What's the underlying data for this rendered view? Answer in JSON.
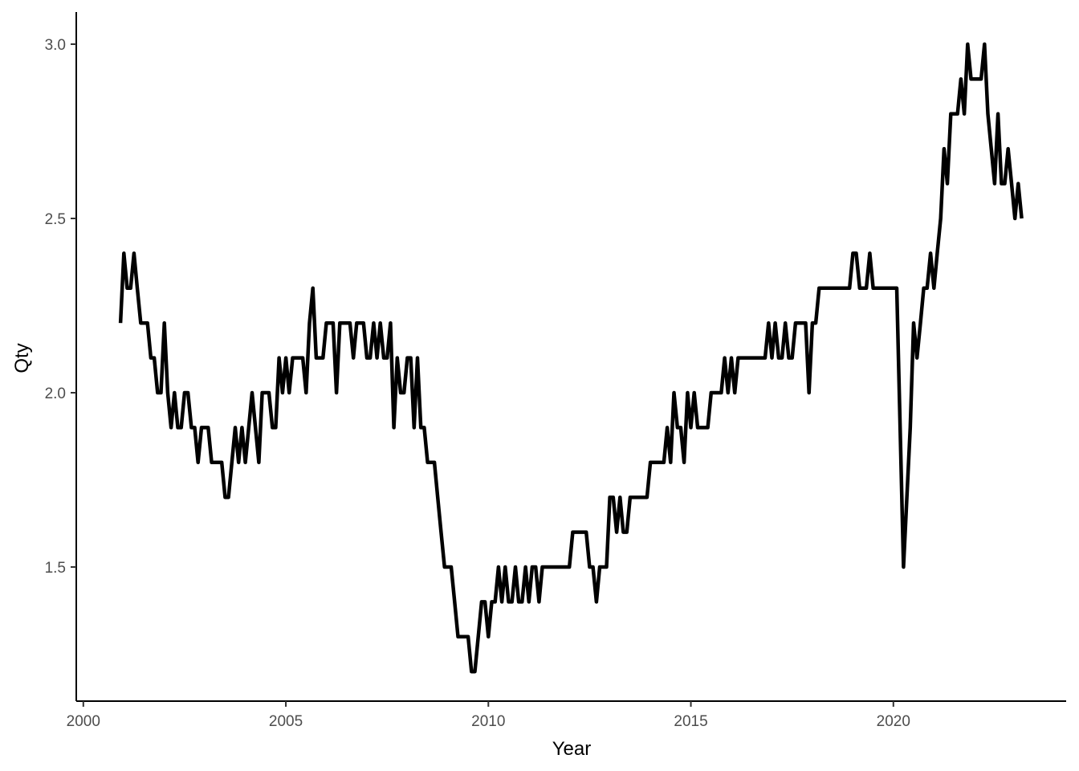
{
  "chart_data": {
    "type": "line",
    "title": "",
    "xlabel": "Year",
    "ylabel": "Qty",
    "xlim": [
      2000,
      2024
    ],
    "ylim": [
      1.17,
      3.08
    ],
    "x_ticks": [
      2000,
      2005,
      2010,
      2015,
      2020
    ],
    "y_ticks": [
      1.5,
      2.0,
      2.5,
      3.0
    ],
    "x_tick_labels": [
      "2000",
      "2005",
      "2010",
      "2015",
      "2020"
    ],
    "y_tick_labels": [
      "1.5",
      "2.0",
      "2.5",
      "3.0"
    ],
    "grid": false,
    "legend": "none",
    "series": [
      {
        "color": "#000000",
        "x": [
          2000.917,
          2001.0,
          2001.083,
          2001.167,
          2001.25,
          2001.333,
          2001.417,
          2001.5,
          2001.583,
          2001.667,
          2001.75,
          2001.833,
          2001.917,
          2002.0,
          2002.083,
          2002.167,
          2002.25,
          2002.333,
          2002.417,
          2002.5,
          2002.583,
          2002.667,
          2002.75,
          2002.833,
          2002.917,
          2003.0,
          2003.083,
          2003.167,
          2003.25,
          2003.333,
          2003.417,
          2003.5,
          2003.583,
          2003.667,
          2003.75,
          2003.833,
          2003.917,
          2004.0,
          2004.083,
          2004.167,
          2004.25,
          2004.333,
          2004.417,
          2004.5,
          2004.583,
          2004.667,
          2004.75,
          2004.833,
          2004.917,
          2005.0,
          2005.083,
          2005.167,
          2005.25,
          2005.333,
          2005.417,
          2005.5,
          2005.583,
          2005.667,
          2005.75,
          2005.833,
          2005.917,
          2006.0,
          2006.083,
          2006.167,
          2006.25,
          2006.333,
          2006.417,
          2006.5,
          2006.583,
          2006.667,
          2006.75,
          2006.833,
          2006.917,
          2007.0,
          2007.083,
          2007.167,
          2007.25,
          2007.333,
          2007.417,
          2007.5,
          2007.583,
          2007.667,
          2007.75,
          2007.833,
          2007.917,
          2008.0,
          2008.083,
          2008.167,
          2008.25,
          2008.333,
          2008.417,
          2008.5,
          2008.583,
          2008.667,
          2008.75,
          2008.833,
          2008.917,
          2009.0,
          2009.083,
          2009.167,
          2009.25,
          2009.333,
          2009.417,
          2009.5,
          2009.583,
          2009.667,
          2009.75,
          2009.833,
          2009.917,
          2010.0,
          2010.083,
          2010.167,
          2010.25,
          2010.333,
          2010.417,
          2010.5,
          2010.583,
          2010.667,
          2010.75,
          2010.833,
          2010.917,
          2011.0,
          2011.083,
          2011.167,
          2011.25,
          2011.333,
          2011.417,
          2011.5,
          2011.583,
          2011.667,
          2011.75,
          2011.833,
          2011.917,
          2012.0,
          2012.083,
          2012.167,
          2012.25,
          2012.333,
          2012.417,
          2012.5,
          2012.583,
          2012.667,
          2012.75,
          2012.833,
          2012.917,
          2013.0,
          2013.083,
          2013.167,
          2013.25,
          2013.333,
          2013.417,
          2013.5,
          2013.583,
          2013.667,
          2013.75,
          2013.833,
          2013.917,
          2014.0,
          2014.083,
          2014.167,
          2014.25,
          2014.333,
          2014.417,
          2014.5,
          2014.583,
          2014.667,
          2014.75,
          2014.833,
          2014.917,
          2015.0,
          2015.083,
          2015.167,
          2015.25,
          2015.333,
          2015.417,
          2015.5,
          2015.583,
          2015.667,
          2015.75,
          2015.833,
          2015.917,
          2016.0,
          2016.083,
          2016.167,
          2016.25,
          2016.333,
          2016.417,
          2016.5,
          2016.583,
          2016.667,
          2016.75,
          2016.833,
          2016.917,
          2017.0,
          2017.083,
          2017.167,
          2017.25,
          2017.333,
          2017.417,
          2017.5,
          2017.583,
          2017.667,
          2017.75,
          2017.833,
          2017.917,
          2018.0,
          2018.083,
          2018.167,
          2018.25,
          2018.333,
          2018.417,
          2018.5,
          2018.583,
          2018.667,
          2018.75,
          2018.833,
          2018.917,
          2019.0,
          2019.083,
          2019.167,
          2019.25,
          2019.333,
          2019.417,
          2019.5,
          2019.583,
          2019.667,
          2019.75,
          2019.833,
          2019.917,
          2020.0,
          2020.083,
          2020.167,
          2020.25,
          2020.333,
          2020.417,
          2020.5,
          2020.583,
          2020.667,
          2020.75,
          2020.833,
          2020.917,
          2021.0,
          2021.083,
          2021.167,
          2021.25,
          2021.333,
          2021.417,
          2021.5,
          2021.583,
          2021.667,
          2021.75,
          2021.833,
          2021.917,
          2022.0,
          2022.083,
          2022.167,
          2022.25,
          2022.333,
          2022.417,
          2022.5,
          2022.583,
          2022.667,
          2022.75,
          2022.833,
          2022.917,
          2023.0,
          2023.083,
          2023.167
        ],
        "y": [
          2.2,
          2.4,
          2.3,
          2.3,
          2.4,
          2.3,
          2.2,
          2.2,
          2.2,
          2.1,
          2.1,
          2.0,
          2.0,
          2.2,
          2.0,
          1.9,
          2.0,
          1.9,
          1.9,
          2.0,
          2.0,
          1.9,
          1.9,
          1.8,
          1.9,
          1.9,
          1.9,
          1.8,
          1.8,
          1.8,
          1.8,
          1.7,
          1.7,
          1.8,
          1.9,
          1.8,
          1.9,
          1.8,
          1.9,
          2.0,
          1.9,
          1.8,
          2.0,
          2.0,
          2.0,
          1.9,
          1.9,
          2.1,
          2.0,
          2.1,
          2.0,
          2.1,
          2.1,
          2.1,
          2.1,
          2.0,
          2.2,
          2.3,
          2.1,
          2.1,
          2.1,
          2.2,
          2.2,
          2.2,
          2.0,
          2.2,
          2.2,
          2.2,
          2.2,
          2.1,
          2.2,
          2.2,
          2.2,
          2.1,
          2.1,
          2.2,
          2.1,
          2.2,
          2.1,
          2.1,
          2.2,
          1.9,
          2.1,
          2.0,
          2.0,
          2.1,
          2.1,
          1.9,
          2.1,
          1.9,
          1.9,
          1.8,
          1.8,
          1.8,
          1.7,
          1.6,
          1.5,
          1.5,
          1.5,
          1.4,
          1.3,
          1.3,
          1.3,
          1.3,
          1.2,
          1.2,
          1.3,
          1.4,
          1.4,
          1.3,
          1.4,
          1.4,
          1.5,
          1.4,
          1.5,
          1.4,
          1.4,
          1.5,
          1.4,
          1.4,
          1.5,
          1.4,
          1.5,
          1.5,
          1.4,
          1.5,
          1.5,
          1.5,
          1.5,
          1.5,
          1.5,
          1.5,
          1.5,
          1.5,
          1.6,
          1.6,
          1.6,
          1.6,
          1.6,
          1.5,
          1.5,
          1.4,
          1.5,
          1.5,
          1.5,
          1.7,
          1.7,
          1.6,
          1.7,
          1.6,
          1.6,
          1.7,
          1.7,
          1.7,
          1.7,
          1.7,
          1.7,
          1.8,
          1.8,
          1.8,
          1.8,
          1.8,
          1.9,
          1.8,
          2.0,
          1.9,
          1.9,
          1.8,
          2.0,
          1.9,
          2.0,
          1.9,
          1.9,
          1.9,
          1.9,
          2.0,
          2.0,
          2.0,
          2.0,
          2.1,
          2.0,
          2.1,
          2.0,
          2.1,
          2.1,
          2.1,
          2.1,
          2.1,
          2.1,
          2.1,
          2.1,
          2.1,
          2.2,
          2.1,
          2.2,
          2.1,
          2.1,
          2.2,
          2.1,
          2.1,
          2.2,
          2.2,
          2.2,
          2.2,
          2.0,
          2.2,
          2.2,
          2.3,
          2.3,
          2.3,
          2.3,
          2.3,
          2.3,
          2.3,
          2.3,
          2.3,
          2.3,
          2.4,
          2.4,
          2.3,
          2.3,
          2.3,
          2.4,
          2.3,
          2.3,
          2.3,
          2.3,
          2.3,
          2.3,
          2.3,
          2.3,
          1.9,
          1.5,
          1.7,
          1.9,
          2.2,
          2.1,
          2.2,
          2.3,
          2.3,
          2.4,
          2.3,
          2.4,
          2.5,
          2.7,
          2.6,
          2.8,
          2.8,
          2.8,
          2.9,
          2.8,
          3.0,
          2.9,
          2.9,
          2.9,
          2.9,
          3.0,
          2.8,
          2.7,
          2.6,
          2.8,
          2.6,
          2.6,
          2.7,
          2.6,
          2.5,
          2.6,
          2.5
        ]
      }
    ]
  }
}
